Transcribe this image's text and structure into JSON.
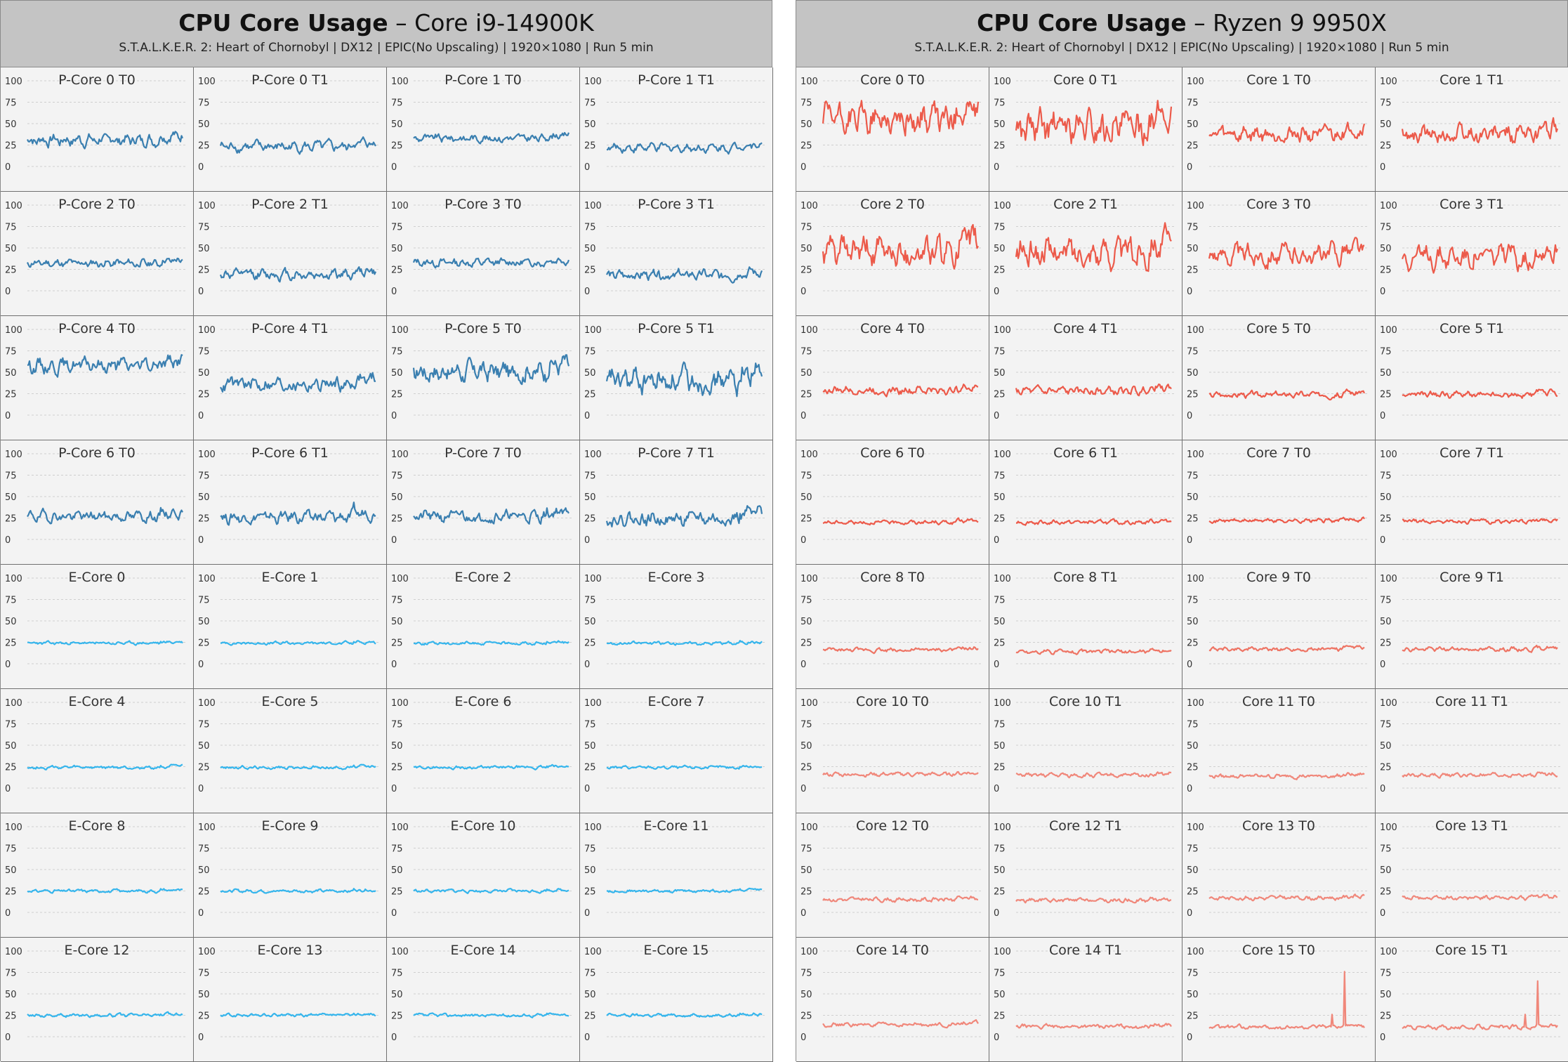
{
  "colors": {
    "pcore": "#3a7fb0",
    "ecore": "#35b5ec",
    "ryzen_high": "#ec5a4a",
    "ryzen_mid": "#ee7464",
    "ryzen_low": "#f0877a"
  },
  "chart_data": [
    {
      "type": "line",
      "title_bold": "CPU Core Usage",
      "title_rest": " – Core i9-14900K",
      "subtitle": "S.T.A.L.K.E.R. 2: Heart of Chornobyl  |  DX12  |  EPIC(No Upscaling)  |  1920×1080  |  Run 5 min",
      "ylim": [
        0,
        100
      ],
      "yticks": [
        0,
        25,
        50,
        75,
        100
      ],
      "grid": true,
      "cores": [
        {
          "name": "P-Core 0 T0",
          "color": "pcore",
          "base": 31,
          "amp": 6
        },
        {
          "name": "P-Core 0 T1",
          "color": "pcore",
          "base": 23,
          "amp": 5
        },
        {
          "name": "P-Core 1 T0",
          "color": "pcore",
          "base": 33,
          "amp": 4
        },
        {
          "name": "P-Core 1 T1",
          "color": "pcore",
          "base": 22,
          "amp": 4
        },
        {
          "name": "P-Core 2 T0",
          "color": "pcore",
          "base": 32,
          "amp": 4
        },
        {
          "name": "P-Core 2 T1",
          "color": "pcore",
          "base": 19,
          "amp": 5
        },
        {
          "name": "P-Core 3 T0",
          "color": "pcore",
          "base": 33,
          "amp": 4
        },
        {
          "name": "P-Core 3 T1",
          "color": "pcore",
          "base": 18,
          "amp": 5
        },
        {
          "name": "P-Core 4 T0",
          "color": "pcore",
          "base": 58,
          "amp": 7
        },
        {
          "name": "P-Core 4 T1",
          "color": "pcore",
          "base": 36,
          "amp": 7
        },
        {
          "name": "P-Core 5 T0",
          "color": "pcore",
          "base": 51,
          "amp": 10
        },
        {
          "name": "P-Core 5 T1",
          "color": "pcore",
          "base": 40,
          "amp": 12
        },
        {
          "name": "P-Core 6 T0",
          "color": "pcore",
          "base": 27,
          "amp": 5
        },
        {
          "name": "P-Core 6 T1",
          "color": "pcore",
          "base": 26,
          "amp": 6
        },
        {
          "name": "P-Core 7 T0",
          "color": "pcore",
          "base": 27,
          "amp": 6
        },
        {
          "name": "P-Core 7 T1",
          "color": "pcore",
          "base": 24,
          "amp": 7
        },
        {
          "name": "E-Core 0",
          "color": "ecore",
          "base": 24,
          "amp": 1.5
        },
        {
          "name": "E-Core 1",
          "color": "ecore",
          "base": 24,
          "amp": 1.5
        },
        {
          "name": "E-Core 2",
          "color": "ecore",
          "base": 24,
          "amp": 1.5
        },
        {
          "name": "E-Core 3",
          "color": "ecore",
          "base": 24,
          "amp": 1.5
        },
        {
          "name": "E-Core 4",
          "color": "ecore",
          "base": 24,
          "amp": 1.5
        },
        {
          "name": "E-Core 5",
          "color": "ecore",
          "base": 24,
          "amp": 1.5
        },
        {
          "name": "E-Core 6",
          "color": "ecore",
          "base": 24,
          "amp": 1.5
        },
        {
          "name": "E-Core 7",
          "color": "ecore",
          "base": 24,
          "amp": 1.5
        },
        {
          "name": "E-Core 8",
          "color": "ecore",
          "base": 25,
          "amp": 1.5
        },
        {
          "name": "E-Core 9",
          "color": "ecore",
          "base": 25,
          "amp": 1.5
        },
        {
          "name": "E-Core 10",
          "color": "ecore",
          "base": 25,
          "amp": 1.5
        },
        {
          "name": "E-Core 11",
          "color": "ecore",
          "base": 25,
          "amp": 1.5
        },
        {
          "name": "E-Core 12",
          "color": "ecore",
          "base": 25,
          "amp": 1.5
        },
        {
          "name": "E-Core 13",
          "color": "ecore",
          "base": 25,
          "amp": 1.5
        },
        {
          "name": "E-Core 14",
          "color": "ecore",
          "base": 25,
          "amp": 1.5
        },
        {
          "name": "E-Core 15",
          "color": "ecore",
          "base": 25,
          "amp": 1.5
        }
      ]
    },
    {
      "type": "line",
      "title_bold": "CPU Core Usage",
      "title_rest": " – Ryzen 9 9950X",
      "subtitle": "S.T.A.L.K.E.R. 2: Heart of Chornobyl  |  DX12  |  EPIC(No Upscaling)  |  1920×1080  |  Run 5 min",
      "ylim": [
        0,
        100
      ],
      "yticks": [
        0,
        25,
        50,
        75,
        100
      ],
      "grid": true,
      "cores": [
        {
          "name": "Core 0 T0",
          "color": "ryzen_high",
          "base": 55,
          "amp": 14
        },
        {
          "name": "Core 0 T1",
          "color": "ryzen_high",
          "base": 45,
          "amp": 16
        },
        {
          "name": "Core 1 T0",
          "color": "ryzen_high",
          "base": 38,
          "amp": 8
        },
        {
          "name": "Core 1 T1",
          "color": "ryzen_high",
          "base": 37,
          "amp": 9
        },
        {
          "name": "Core 2 T0",
          "color": "ryzen_high",
          "base": 45,
          "amp": 14
        },
        {
          "name": "Core 2 T1",
          "color": "ryzen_high",
          "base": 45,
          "amp": 14
        },
        {
          "name": "Core 3 T0",
          "color": "ryzen_high",
          "base": 42,
          "amp": 10
        },
        {
          "name": "Core 3 T1",
          "color": "ryzen_high",
          "base": 40,
          "amp": 11
        },
        {
          "name": "Core 4 T0",
          "color": "ryzen_high",
          "base": 29,
          "amp": 4
        },
        {
          "name": "Core 4 T1",
          "color": "ryzen_high",
          "base": 28,
          "amp": 4
        },
        {
          "name": "Core 5 T0",
          "color": "ryzen_high",
          "base": 24,
          "amp": 3
        },
        {
          "name": "Core 5 T1",
          "color": "ryzen_high",
          "base": 24,
          "amp": 3
        },
        {
          "name": "Core 6 T0",
          "color": "ryzen_high",
          "base": 20,
          "amp": 2
        },
        {
          "name": "Core 6 T1",
          "color": "ryzen_high",
          "base": 20,
          "amp": 2
        },
        {
          "name": "Core 7 T0",
          "color": "ryzen_high",
          "base": 22,
          "amp": 2
        },
        {
          "name": "Core 7 T1",
          "color": "ryzen_high",
          "base": 21,
          "amp": 2
        },
        {
          "name": "Core 8 T0",
          "color": "ryzen_mid",
          "base": 16,
          "amp": 2
        },
        {
          "name": "Core 8 T1",
          "color": "ryzen_mid",
          "base": 14,
          "amp": 2
        },
        {
          "name": "Core 9 T0",
          "color": "ryzen_mid",
          "base": 17,
          "amp": 2
        },
        {
          "name": "Core 9 T1",
          "color": "ryzen_mid",
          "base": 17,
          "amp": 2
        },
        {
          "name": "Core 10 T0",
          "color": "ryzen_low",
          "base": 16,
          "amp": 2
        },
        {
          "name": "Core 10 T1",
          "color": "ryzen_low",
          "base": 15,
          "amp": 2
        },
        {
          "name": "Core 11 T0",
          "color": "ryzen_low",
          "base": 14,
          "amp": 2
        },
        {
          "name": "Core 11 T1",
          "color": "ryzen_low",
          "base": 15,
          "amp": 2
        },
        {
          "name": "Core 12 T0",
          "color": "ryzen_low",
          "base": 15,
          "amp": 2
        },
        {
          "name": "Core 12 T1",
          "color": "ryzen_low",
          "base": 14,
          "amp": 2
        },
        {
          "name": "Core 13 T0",
          "color": "ryzen_low",
          "base": 17,
          "amp": 2
        },
        {
          "name": "Core 13 T1",
          "color": "ryzen_low",
          "base": 17,
          "amp": 2
        },
        {
          "name": "Core 14 T0",
          "color": "ryzen_low",
          "base": 14,
          "amp": 2
        },
        {
          "name": "Core 14 T1",
          "color": "ryzen_low",
          "base": 12,
          "amp": 2
        },
        {
          "name": "Core 15 T0",
          "color": "ryzen_low",
          "base": 11,
          "amp": 2,
          "spike": 76
        },
        {
          "name": "Core 15 T1",
          "color": "ryzen_low",
          "base": 11,
          "amp": 2,
          "spike": 65
        }
      ]
    }
  ]
}
